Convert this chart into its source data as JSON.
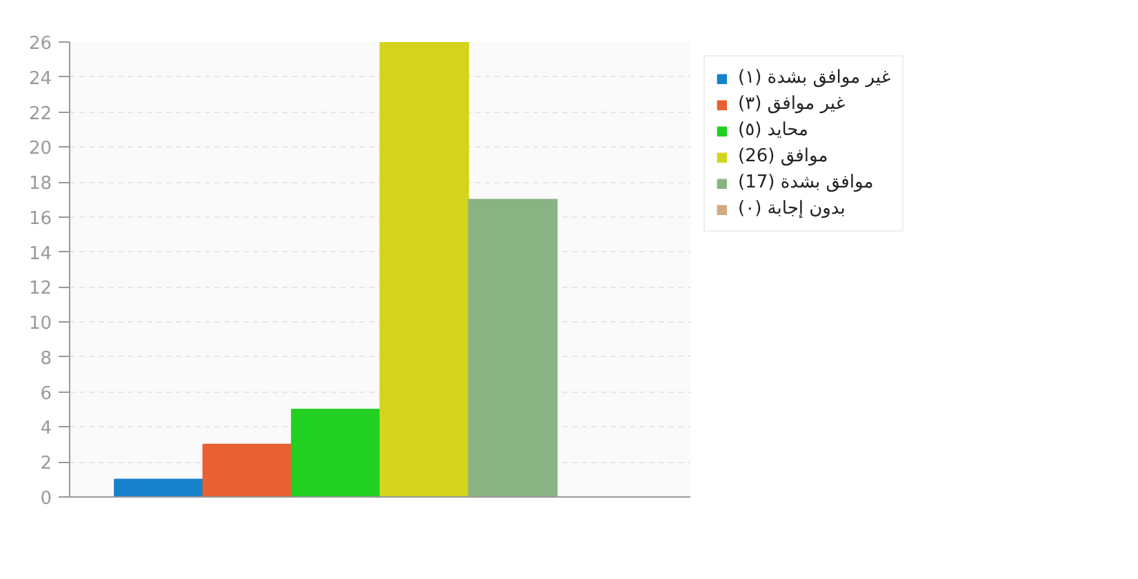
{
  "chart_data": {
    "type": "bar",
    "categories": [
      null
    ],
    "series": [
      {
        "name": "غير موافق بشدة (١)",
        "color": "#1582cb",
        "values": [
          1
        ]
      },
      {
        "name": "غير موافق (٣)",
        "color": "#e96033",
        "values": [
          3
        ]
      },
      {
        "name": "محايد (٥)",
        "color": "#22d022",
        "values": [
          5
        ]
      },
      {
        "name": "موافق (26)",
        "color": "#d4d41e",
        "values": [
          26
        ]
      },
      {
        "name": "موافق بشدة (17)",
        "color": "#88b383",
        "values": [
          17
        ]
      },
      {
        "name": "بدون إجابة (٠)",
        "color": "#d2aa80",
        "values": [
          0
        ]
      }
    ],
    "ylim": [
      0,
      26
    ],
    "yticks": [
      0,
      2,
      4,
      6,
      8,
      10,
      12,
      14,
      16,
      18,
      20,
      22,
      24,
      26
    ],
    "grid": "y",
    "legend": "right",
    "tick_labels": "y"
  }
}
